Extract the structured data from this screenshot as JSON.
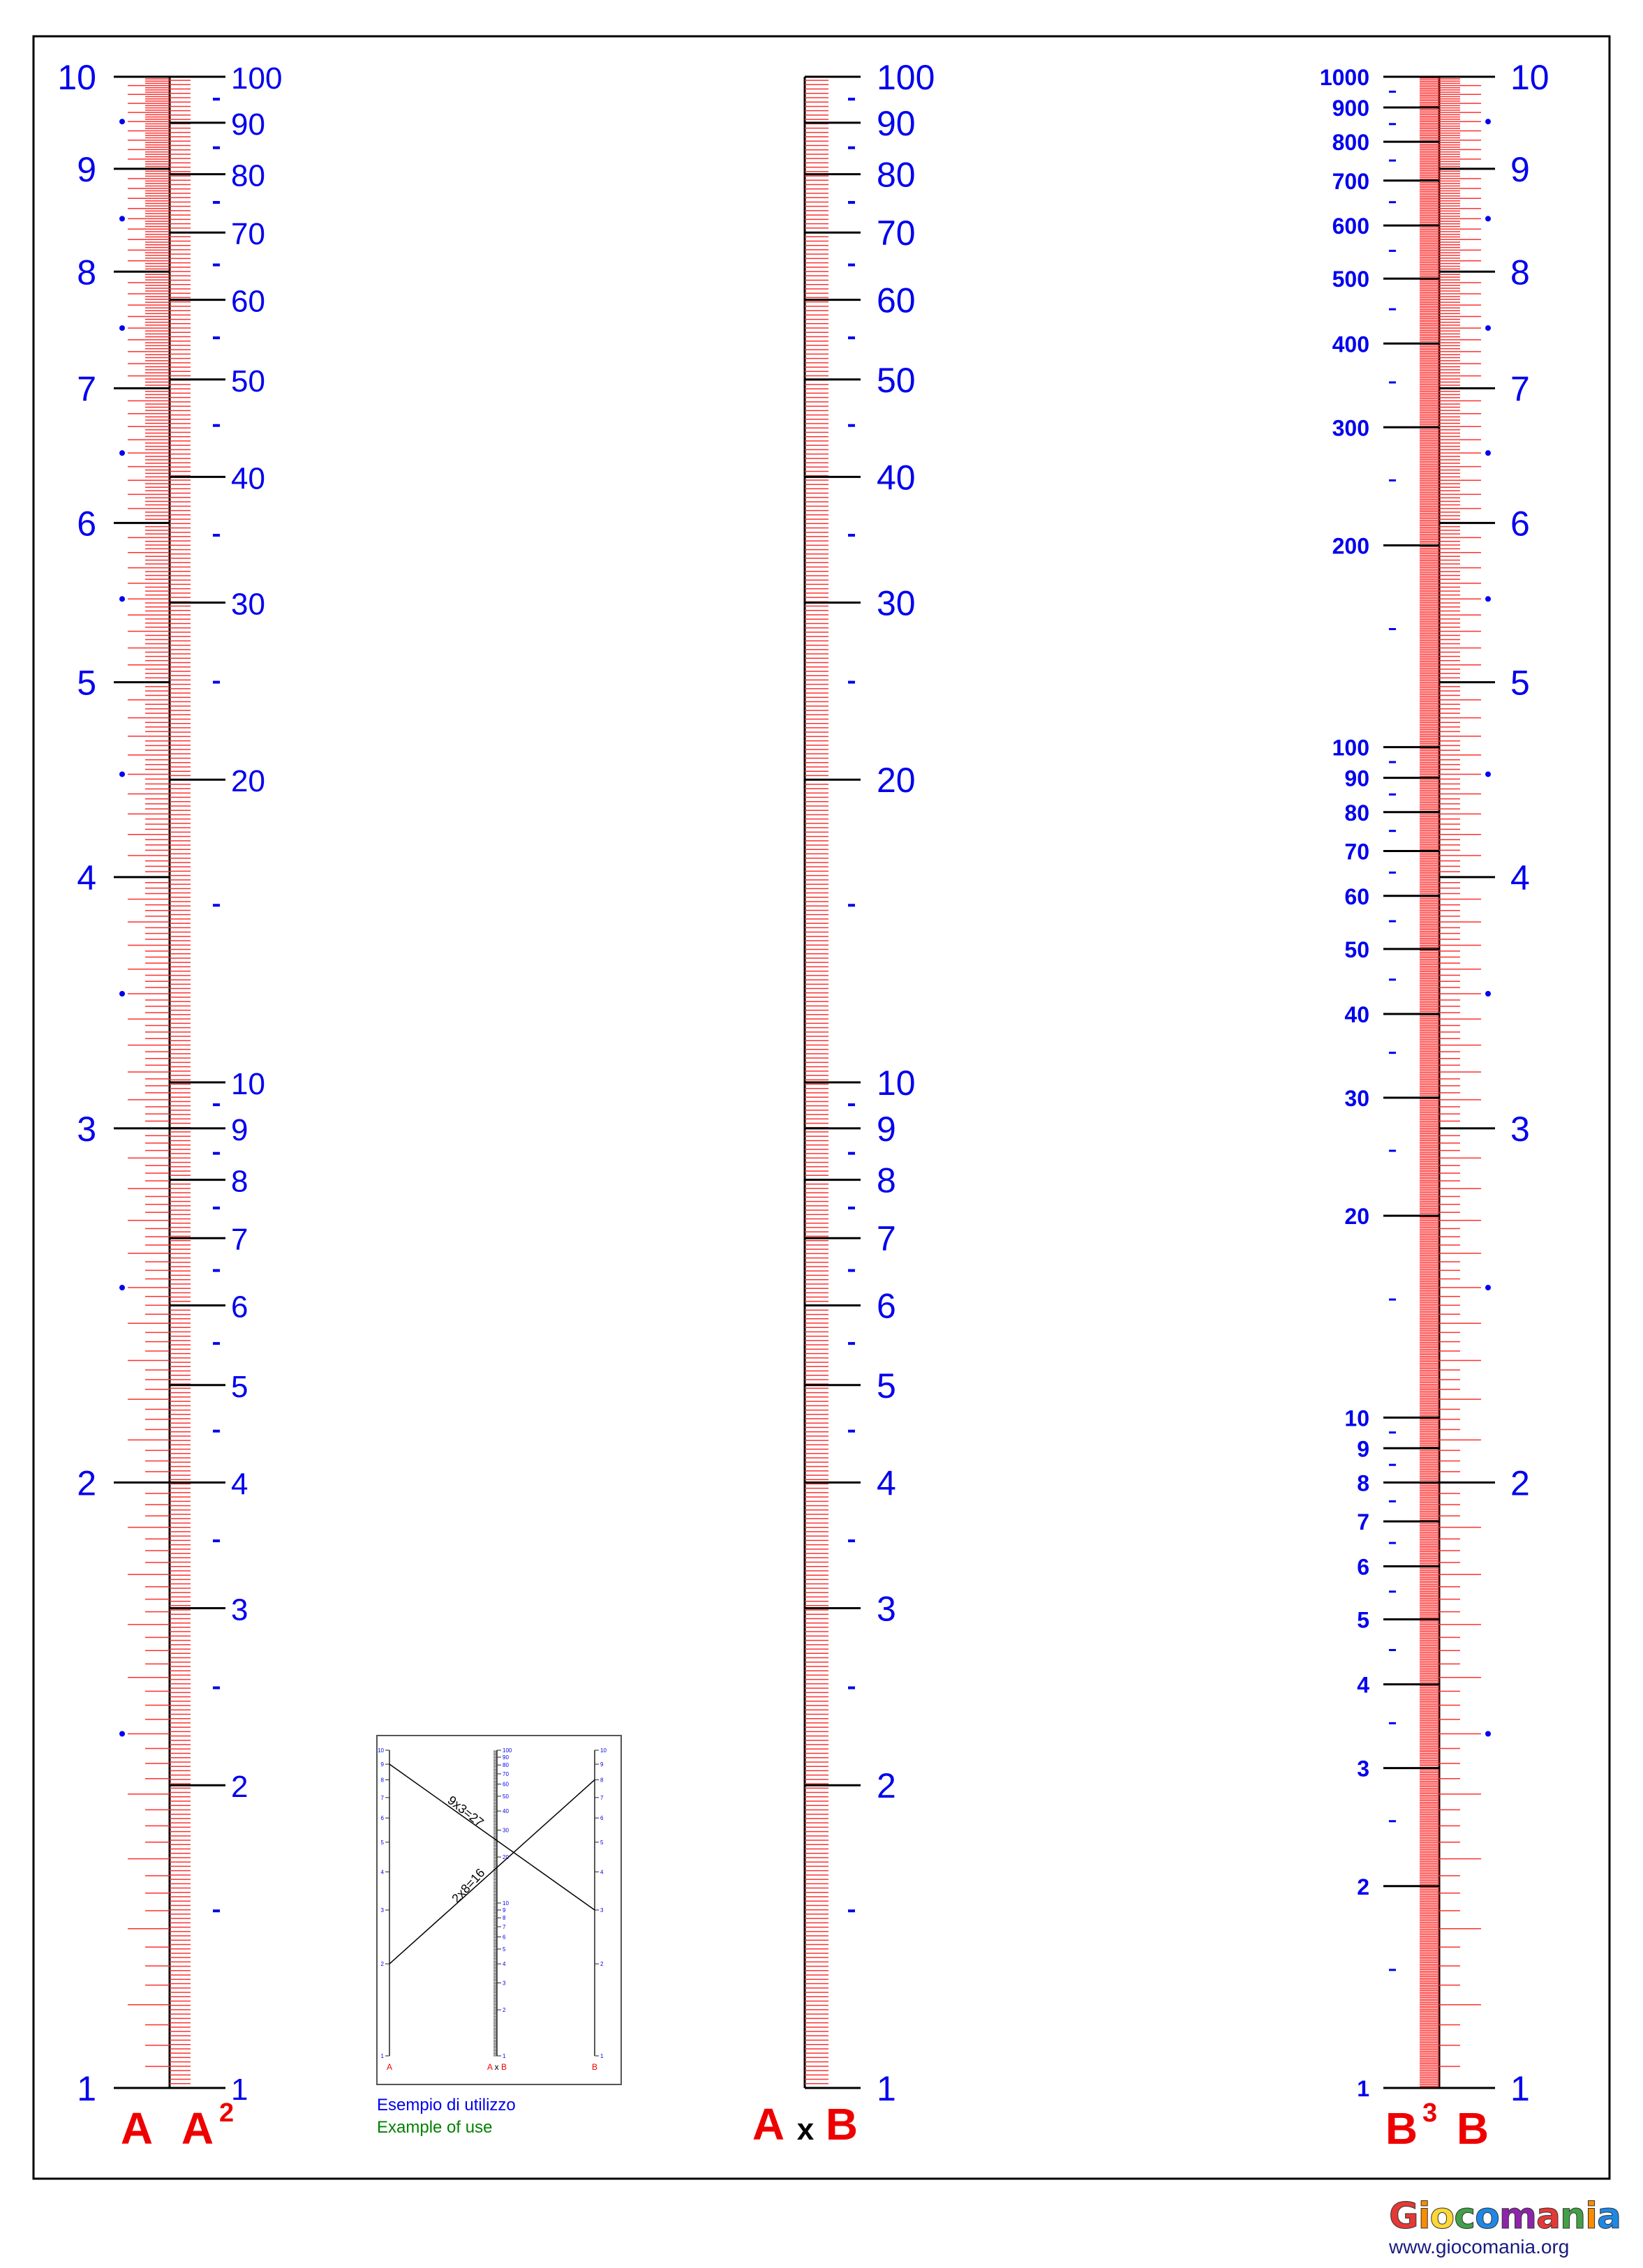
{
  "scales": {
    "a_label": "A",
    "a2_label": "A",
    "a2_sup": "2",
    "product_a": "A",
    "product_x": "x",
    "product_b": "B",
    "b3_label": "B",
    "b3_sup": "3",
    "b_label": "B"
  },
  "scale_values": {
    "A": [
      "1",
      "2",
      "3",
      "4",
      "5",
      "6",
      "7",
      "8",
      "9",
      "10"
    ],
    "A2": [
      "1",
      "2",
      "3",
      "4",
      "5",
      "6",
      "7",
      "8",
      "9",
      "10",
      "20",
      "30",
      "40",
      "50",
      "60",
      "70",
      "80",
      "90",
      "100"
    ],
    "AxB": [
      "1",
      "2",
      "3",
      "4",
      "5",
      "6",
      "7",
      "8",
      "9",
      "10",
      "20",
      "30",
      "40",
      "50",
      "60",
      "70",
      "80",
      "90",
      "100"
    ],
    "B3": [
      "1",
      "2",
      "3",
      "4",
      "5",
      "6",
      "7",
      "8",
      "9",
      "10",
      "20",
      "30",
      "40",
      "50",
      "60",
      "70",
      "80",
      "90",
      "100",
      "200",
      "300",
      "400",
      "500",
      "600",
      "700",
      "800",
      "900",
      "1000"
    ],
    "B": [
      "1",
      "2",
      "3",
      "4",
      "5",
      "6",
      "7",
      "8",
      "9",
      "10"
    ]
  },
  "example": {
    "line1_label": "9x3=27",
    "line2_label": "2x8=16",
    "caption_it": "Esempio di utilizzo",
    "caption_en": "Example of use"
  },
  "logo": {
    "text": "Giocomania",
    "url": "www.giocomania.org"
  },
  "colors": {
    "blue": "#0000ee",
    "red": "#ee0000",
    "minor_red": "#ff3030"
  }
}
